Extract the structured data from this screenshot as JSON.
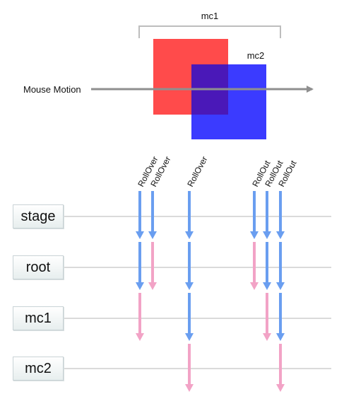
{
  "top": {
    "mc1_label": "mc1",
    "mc2_label": "mc2",
    "motion_label": "Mouse Motion",
    "colors": {
      "mc1": "#ff4b4b",
      "mc2": "#3b3bff",
      "overlap": "#4a18b8",
      "motion_arrow": "#8f8f8f",
      "bracket": "#bdbdbd"
    }
  },
  "lanes": [
    {
      "label": "stage"
    },
    {
      "label": "root"
    },
    {
      "label": "mc1"
    },
    {
      "label": "mc2"
    }
  ],
  "events": [
    {
      "label": "RollOver",
      "phases": [
        "capture",
        "capture",
        "target"
      ]
    },
    {
      "label": "RollOver",
      "phases": [
        "capture",
        "target"
      ]
    },
    {
      "label": "RollOver",
      "phases": [
        "capture",
        "capture",
        "capture",
        "target"
      ]
    },
    {
      "label": "RollOut",
      "phases": [
        "capture",
        "target"
      ]
    },
    {
      "label": "RollOut",
      "phases": [
        "capture",
        "capture",
        "target"
      ]
    },
    {
      "label": "RollOut",
      "phases": [
        "capture",
        "capture",
        "capture",
        "target"
      ]
    }
  ],
  "phase_colors": {
    "capture": "#6a9ef0",
    "target": "#f2a3c6"
  },
  "lane_line_color": "#cdcdcd"
}
